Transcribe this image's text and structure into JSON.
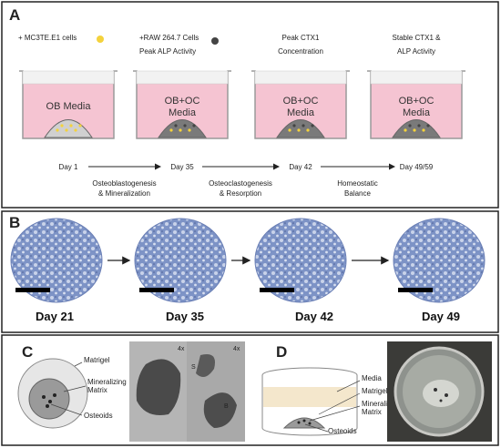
{
  "panel_a": {
    "label": "A",
    "wells": [
      {
        "additions": [
          "+ MC3TE.E1 cells"
        ],
        "media": [
          "OB Media"
        ],
        "day": "Day 1"
      },
      {
        "additions": [
          "+RAW 264.7 Cells",
          "Peak ALP Activity"
        ],
        "media": [
          "OB+OC",
          "Media"
        ],
        "day": "Day 35"
      },
      {
        "additions": [
          "Peak CTX1",
          "Concentration"
        ],
        "media": [
          "OB+OC",
          "Media"
        ],
        "day": "Day 42"
      },
      {
        "additions": [
          "Stable CTX1 &",
          "ALP Activity"
        ],
        "media": [
          "OB+OC",
          "Media"
        ],
        "day": "Day 49/59"
      }
    ],
    "processes": [
      [
        "Osteoblastogenesis",
        "& Mineralization"
      ],
      [
        "Osteoclastogenesis",
        "& Resorption"
      ],
      [
        "Homeostatic",
        "Balance"
      ]
    ]
  },
  "panel_b": {
    "label": "B",
    "days": [
      "Day 21",
      "Day 35",
      "Day 42",
      "Day 49"
    ]
  },
  "panel_c": {
    "label": "C",
    "diagram_labels": {
      "matrigel": "Matrigel",
      "matrix": [
        "Mineralizing",
        "Matrix"
      ],
      "osteoids": "Osteoids"
    },
    "photo_labels": [
      "4x",
      "4x",
      "S",
      "B"
    ]
  },
  "panel_d": {
    "label": "D",
    "diagram_labels": {
      "media": "Media",
      "matrigel": "Matrigel",
      "matrix": [
        "Mineralizing",
        "Matrix"
      ],
      "osteoids": "Osteoids"
    }
  }
}
